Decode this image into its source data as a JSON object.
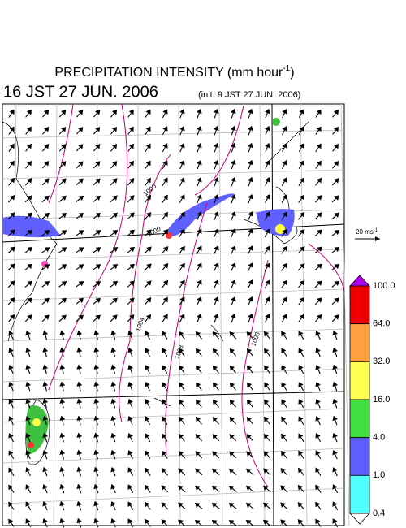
{
  "header": {
    "title": {
      "text": "PRECIPITATION INTENSITY (mm hour",
      "superscript": "-1",
      "close": ")"
    },
    "valid_time": "16 JST 27 JUN. 2006",
    "init_time": "(init. 9 JST 27 JUN. 2006)"
  },
  "wind_reference": {
    "text": "20 ms",
    "superscript": "-1"
  },
  "contour_labels": [
    "1000",
    "1000",
    "1004",
    "1008",
    "1008"
  ],
  "colorbar": {
    "labels": [
      "100.0",
      "64.0",
      "32.0",
      "16.0",
      "4.0",
      "1.0",
      "0.4"
    ]
  }
}
